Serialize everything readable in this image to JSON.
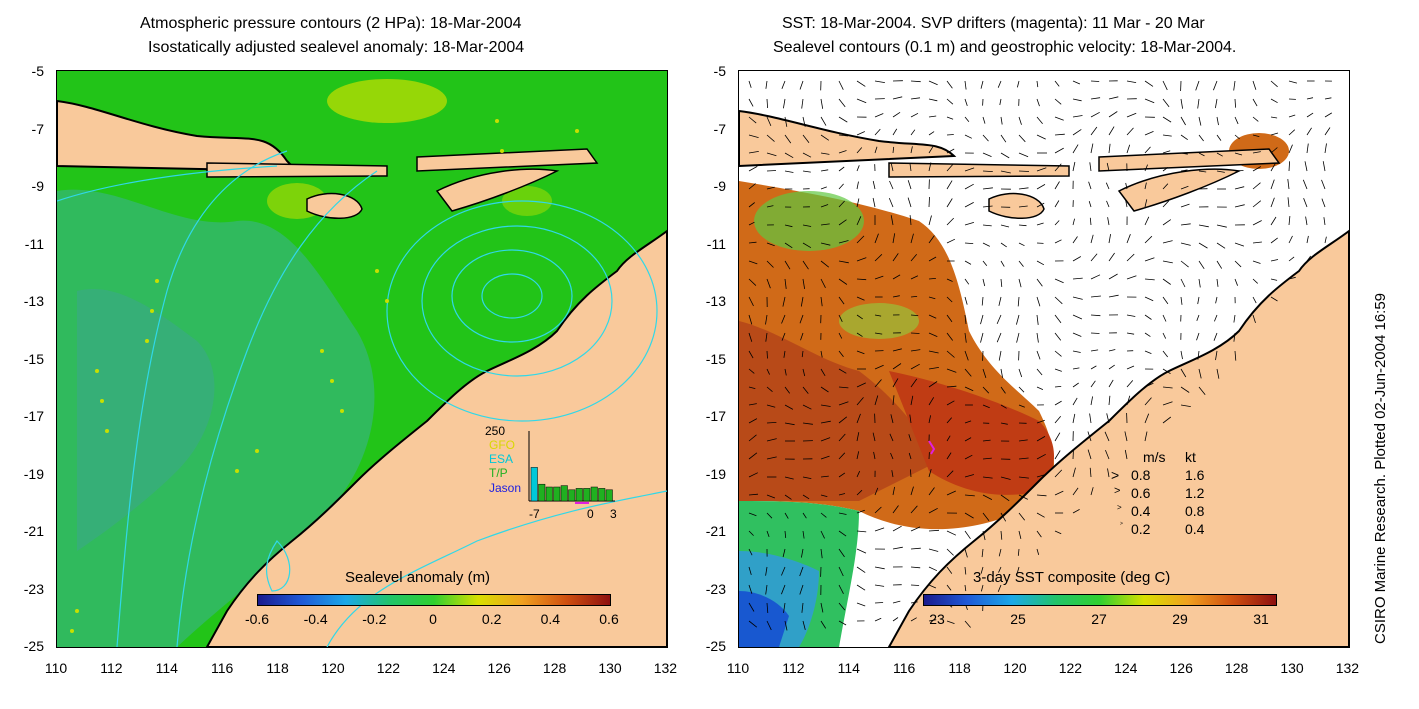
{
  "left_panel": {
    "title_line1": "Atmospheric pressure contours (2 HPa): 18-Mar-2004",
    "title_line2": "Isostatically adjusted sealevel anomaly: 18-Mar-2004",
    "colorbar_label": "Sealevel anomaly (m)",
    "colorbar_ticks": [
      "-0.6",
      "-0.4",
      "-0.2",
      "0",
      "0.2",
      "0.4",
      "0.6"
    ],
    "inset": {
      "ymax_label": "250",
      "legend": [
        "GFO",
        "ESA",
        "T/P",
        "Jason"
      ],
      "legend_colors": [
        "#d8d800",
        "#00c8d8",
        "#20b020",
        "#2020e0"
      ],
      "x_ticks": [
        "-7",
        "0",
        "3"
      ],
      "bar_values": [
        120,
        60,
        50,
        50,
        55,
        40,
        45,
        45,
        50,
        45,
        40
      ]
    }
  },
  "right_panel": {
    "title_line1": "SST: 18-Mar-2004. SVP drifters (magenta): 11 Mar - 20 Mar",
    "title_line2": "Sealevel contours (0.1 m) and geostrophic velocity: 18-Mar-2004.",
    "colorbar_label": "3-day SST composite (deg C)",
    "colorbar_ticks": [
      "23",
      "25",
      "27",
      "29",
      "31"
    ],
    "speed_legend": {
      "header": [
        "m/s",
        "kt"
      ],
      "rows": [
        [
          "0.8",
          "1.6"
        ],
        [
          "0.6",
          "1.2"
        ],
        [
          "0.4",
          "0.8"
        ],
        [
          "0.2",
          "0.4"
        ]
      ]
    }
  },
  "axes": {
    "y_ticks": [
      "-5",
      "-7",
      "-9",
      "-11",
      "-13",
      "-15",
      "-17",
      "-19",
      "-21",
      "-23",
      "-25"
    ],
    "x_ticks": [
      "110",
      "112",
      "114",
      "116",
      "118",
      "120",
      "122",
      "124",
      "126",
      "128",
      "130",
      "132"
    ]
  },
  "credit": "CSIRO Marine Research. Plotted 02-Jun-2004 16:59",
  "colors": {
    "land": "#f9c99b",
    "ocean_green": "#22c418",
    "ocean_mid": "#33b86a",
    "contour": "#30d8e8",
    "sst_hot": "#c04818",
    "sst_cold": "#1858d0"
  }
}
